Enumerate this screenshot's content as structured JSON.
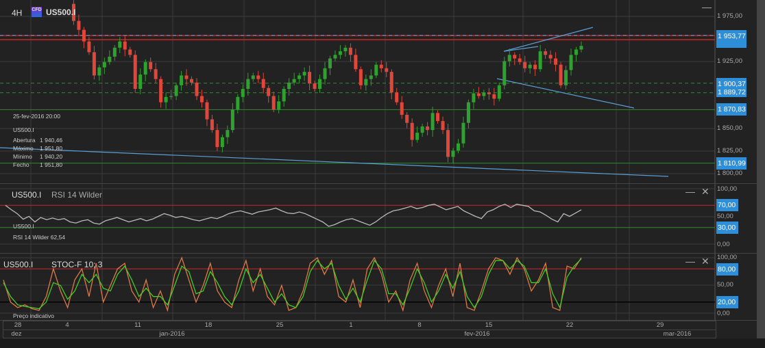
{
  "header": {
    "timeframe": "4H",
    "badge": "CFD",
    "symbol": "US500.I"
  },
  "info": {
    "date": "25-fev-2016 20:00",
    "symbol": "US500.I",
    "rows": [
      {
        "k": "Abertura",
        "v": "1 940,46"
      },
      {
        "k": "Máximo",
        "v": "1 951,80"
      },
      {
        "k": "Mínimo",
        "v": "1 940,20"
      },
      {
        "k": "Fecho",
        "v": "1 951,80"
      }
    ]
  },
  "price_axis": {
    "ticks": [
      "1 975,00",
      "1 925,00",
      "1 850,00",
      "1 825,00",
      "1 800,00"
    ],
    "labels": [
      "1 953,77",
      "1 900,37",
      "1 889,72",
      "1 870,83",
      "1 810,99"
    ]
  },
  "rsi": {
    "symbol": "US500.I",
    "name": "RSI 14 Wilder",
    "legend_symbol": "US500.I",
    "legend_value": "RSI 14 Wilder  62,54",
    "ticks": [
      "100,00",
      "50,00",
      "0,00"
    ],
    "labels": [
      "70,00",
      "30,00"
    ]
  },
  "stoc": {
    "symbol": "US500.I",
    "name": "STOC-F 10; 3",
    "ticks": [
      "100,00",
      "50,00",
      "0,00"
    ],
    "labels": [
      "80,00",
      "20,00"
    ],
    "footer": "Preço indicativo"
  },
  "time_axis": {
    "days": [
      "28",
      "4",
      "11",
      "18",
      "25",
      "1",
      "8",
      "15",
      "22",
      "29"
    ],
    "months": [
      "dez",
      "jan-2016",
      "fev-2016",
      "mar-2016"
    ]
  },
  "colors": {
    "up": "#2ea12e",
    "down": "#e0463a",
    "level_red": "#c62828",
    "level_green": "#2e8b2e",
    "trend": "#5aa0d8",
    "label_bg": "#2f8ed8",
    "stoc_k": "#e07848",
    "stoc_d": "#44cc22"
  },
  "chart_data": {
    "type": "candlestick",
    "price_closes": [
      1989,
      1970,
      1960,
      1947,
      1935,
      1909,
      1918,
      1924,
      1930,
      1940,
      1947,
      1938,
      1932,
      1894,
      1910,
      1924,
      1916,
      1905,
      1879,
      1885,
      1886,
      1898,
      1909,
      1905,
      1901,
      1886,
      1879,
      1860,
      1848,
      1829,
      1840,
      1848,
      1871,
      1885,
      1894,
      1905,
      1909,
      1905,
      1895,
      1886,
      1871,
      1880,
      1894,
      1901,
      1905,
      1909,
      1913,
      1900,
      1894,
      1905,
      1917,
      1928,
      1932,
      1936,
      1940,
      1932,
      1916,
      1898,
      1905,
      1909,
      1921,
      1917,
      1913,
      1890,
      1879,
      1865,
      1856,
      1837,
      1845,
      1852,
      1848,
      1867,
      1858,
      1848,
      1818,
      1825,
      1833,
      1856,
      1879,
      1889,
      1886,
      1890,
      1888,
      1883,
      1898,
      1925,
      1932,
      1928,
      1924,
      1917,
      1921,
      1916,
      1936,
      1932,
      1928,
      1921,
      1898,
      1915,
      1932,
      1938,
      1942
    ],
    "rsi_values": [
      70,
      62,
      55,
      45,
      50,
      40,
      48,
      44,
      47,
      44,
      46,
      40,
      38,
      42,
      44,
      38,
      36,
      42,
      45,
      48,
      44,
      40,
      43,
      46,
      42,
      45,
      50,
      55,
      52,
      48,
      50,
      47,
      44,
      42,
      45,
      48,
      46,
      50,
      55,
      58,
      60,
      57,
      54,
      58,
      60,
      62,
      65,
      60,
      56,
      55,
      58,
      55,
      50,
      45,
      40,
      32,
      35,
      40,
      44,
      46,
      42,
      38,
      34,
      40,
      48,
      55,
      60,
      62,
      65,
      68,
      64,
      66,
      70,
      72,
      67,
      62,
      65,
      68,
      60,
      55,
      50,
      46,
      58,
      62,
      68,
      72,
      66,
      72,
      70,
      68,
      60,
      58,
      52,
      45,
      40,
      55,
      50,
      56,
      62
    ],
    "stoc_k": [
      60,
      20,
      10,
      15,
      8,
      5,
      30,
      80,
      40,
      10,
      60,
      80,
      30,
      90,
      20,
      50,
      80,
      90,
      40,
      20,
      60,
      10,
      40,
      5,
      70,
      100,
      60,
      20,
      50,
      90,
      40,
      20,
      10,
      60,
      95,
      40,
      80,
      30,
      15,
      50,
      5,
      10,
      40,
      90,
      100,
      70,
      95,
      30,
      20,
      60,
      10,
      80,
      100,
      70,
      20,
      40,
      5,
      60,
      90,
      40,
      10,
      50,
      80,
      30,
      90,
      10,
      5,
      40,
      80,
      100,
      95,
      70,
      100,
      80,
      40,
      60,
      90,
      10,
      5,
      85,
      80,
      100
    ],
    "stoc_d": [
      55,
      30,
      15,
      12,
      10,
      8,
      20,
      55,
      50,
      25,
      40,
      70,
      55,
      70,
      45,
      40,
      70,
      85,
      60,
      30,
      45,
      30,
      30,
      15,
      50,
      85,
      75,
      35,
      40,
      75,
      55,
      30,
      15,
      40,
      80,
      55,
      70,
      45,
      20,
      35,
      15,
      10,
      30,
      75,
      95,
      80,
      90,
      50,
      25,
      45,
      20,
      60,
      95,
      80,
      35,
      35,
      15,
      45,
      80,
      55,
      20,
      40,
      70,
      45,
      75,
      30,
      10,
      30,
      70,
      95,
      95,
      80,
      95,
      85,
      55,
      55,
      80,
      35,
      10,
      65,
      85,
      98
    ],
    "levels": [
      1953.77,
      1900.37,
      1889.72,
      1870.83,
      1810.99
    ],
    "price_range": [
      1795,
      1985
    ]
  }
}
